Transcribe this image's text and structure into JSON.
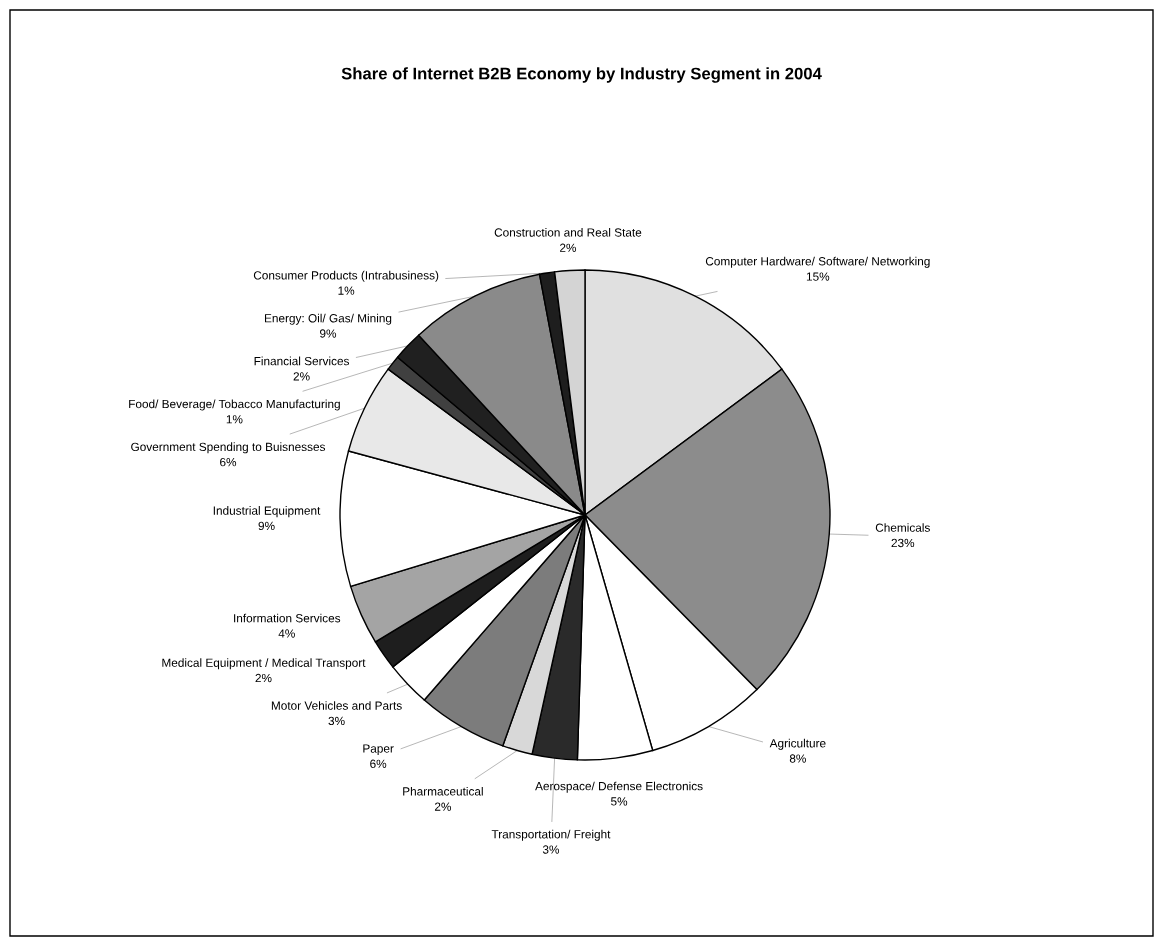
{
  "chart_data": {
    "type": "pie",
    "title": "Share of Internet B2B Economy by Industry Segment in 2004",
    "categories": [
      "Computer Hardware/ Software/ Networking",
      "Chemicals",
      "Agriculture",
      "Aerospace/ Defense Electronics",
      "Transportation/ Freight",
      "Pharmaceutical",
      "Paper",
      "Motor Vehicles and Parts",
      "Medical Equipment / Medical Transport",
      "Information Services",
      "Industrial Equipment",
      "Government Spending to Buisnesses",
      "Food/ Beverage/ Tobacco Manufacturing",
      "Financial Services",
      "Energy: Oil/ Gas/ Mining",
      "Consumer Products (Intrabusiness)",
      "Construction and Real State"
    ],
    "values": [
      15,
      23,
      8,
      5,
      3,
      2,
      6,
      3,
      2,
      4,
      9,
      6,
      1,
      2,
      9,
      1,
      2
    ],
    "value_labels": [
      "15%",
      "23%",
      "8%",
      "5%",
      "3%",
      "2%",
      "6%",
      "3%",
      "2%",
      "4%",
      "9%",
      "6%",
      "1%",
      "2%",
      "9%",
      "1%",
      "2%"
    ],
    "colors": [
      "#e0e0e0",
      "#8c8c8c",
      "#ffffff",
      "#ffffff",
      "#2a2a2a",
      "#d8d8d8",
      "#7c7c7c",
      "#ffffff",
      "#1e1e1e",
      "#a4a4a4",
      "#ffffff",
      "#e8e8e8",
      "#404040",
      "#202020",
      "#8a8a8a",
      "#1e1e1e",
      "#d4d4d4"
    ]
  }
}
